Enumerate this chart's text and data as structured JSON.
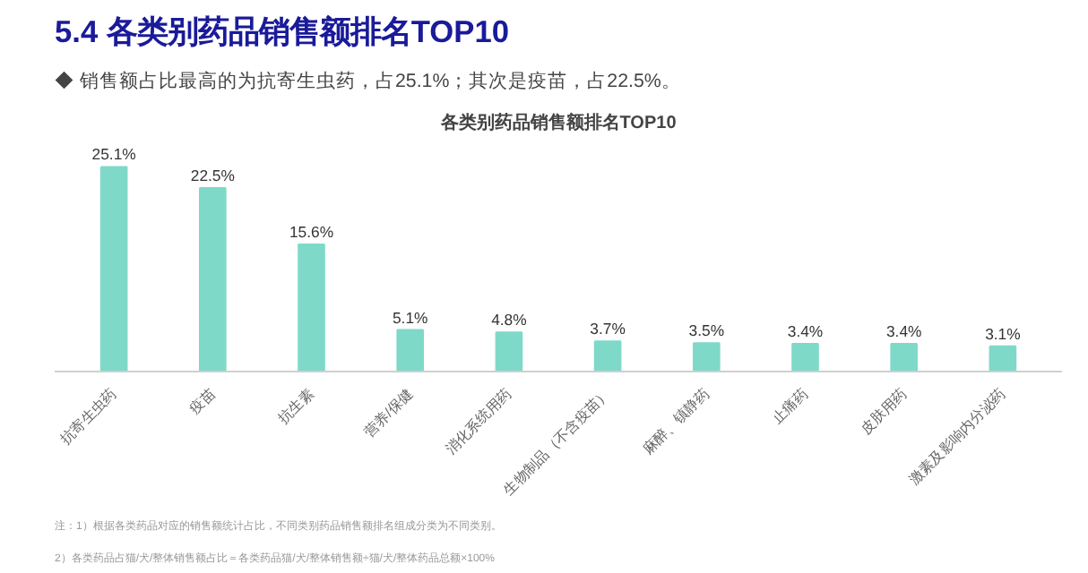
{
  "chart_data": {
    "type": "bar",
    "title": "5.4 各类别药品销售额排名TOP10",
    "subtitle": "◆ 销售额占比最高的为抗寄生虫药，占25.1%；其次是疫苗，占22.5%。",
    "xlabel": "各类别药品销售额排名TOP10",
    "categories": [
      "抗寄生虫药",
      "疫苗",
      "抗生素",
      "营养/保健",
      "消化系统用药",
      "生物制品（不含疫苗）",
      "麻醉、镇静药",
      "止痛药",
      "皮肤用药",
      "激素及影响内分泌药"
    ],
    "values": [
      25.1,
      22.5,
      15.6,
      5.1,
      4.8,
      3.7,
      3.5,
      3.4,
      3.4,
      3.1
    ],
    "color": "#7fd9c9",
    "value_labels": [
      "25.1%",
      "22.5%",
      "15.6%",
      "5.1%",
      "4.8%",
      "3.7%",
      "3.5%",
      "3.4%",
      "3.4%",
      "3.1%"
    ],
    "tick_labels": "x",
    "annotations": [
      "注：1）根据各类药品对应的销售额统计占比，不同类别药品销售额排名组成分类为不同类别。",
      "2）各类药品占猫/犬/整体销售额占比＝各类药品猫/犬/整体销售额÷猫/犬/整体药品总额×100%"
    ]
  }
}
